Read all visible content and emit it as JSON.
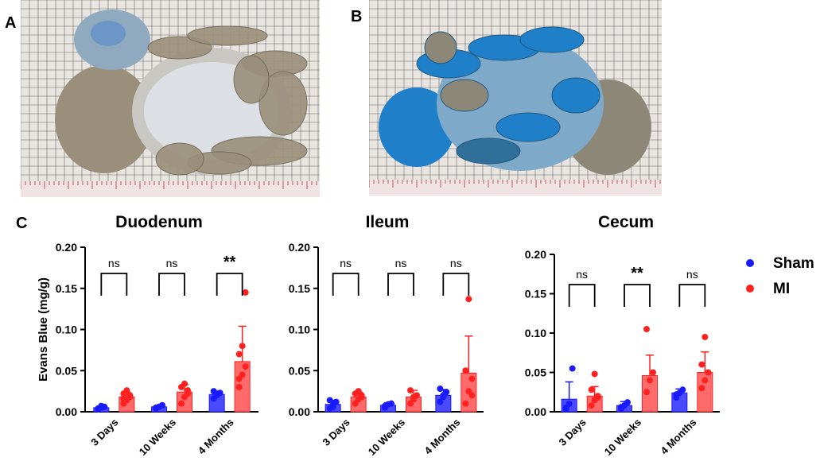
{
  "panels": {
    "a_label": "A",
    "b_label": "B",
    "c_label": "C"
  },
  "photos": {
    "a": {
      "description_icon": "intestine-photo-mildly-stained",
      "tissue_color": "#9a8f7a",
      "stain_color": "#5b8fc9",
      "grid_color": "#3a3a3a",
      "background_color": "#e8e4e0"
    },
    "b": {
      "description_icon": "intestine-photo-blue-stained",
      "tissue_color": "#8d8778",
      "stain_color": "#1f7fc8",
      "grid_color": "#3a3a3a",
      "background_color": "#e8e4e0"
    }
  },
  "legend": {
    "items": [
      {
        "label": "Sham",
        "color": "#1a1aff"
      },
      {
        "label": "MI",
        "color": "#ff2020"
      }
    ]
  },
  "colors": {
    "sham_fill": "#4a4aff",
    "mi_fill": "#ff6b6b",
    "sham_point": "#1a1aff",
    "mi_point": "#ff2020",
    "sham_error": "#1a1aff",
    "mi_error": "#ff2020"
  },
  "chart_data": [
    {
      "type": "bar",
      "title": "Duodenum",
      "ylabel": "Evans Blue (mg/g)",
      "ylim": [
        0,
        0.2
      ],
      "yticks": [
        "0.00",
        "0.05",
        "0.10",
        "0.15",
        "0.20"
      ],
      "categories": [
        "3 Days",
        "10 Weeks",
        "4 Months"
      ],
      "series": [
        {
          "name": "Sham",
          "values": [
            0.005,
            0.006,
            0.021
          ],
          "errors": [
            0.002,
            0.002,
            0.004
          ],
          "points": [
            [
              0.003,
              0.005,
              0.006,
              0.004,
              0.007
            ],
            [
              0.004,
              0.006,
              0.008,
              0.005
            ],
            [
              0.016,
              0.02,
              0.023,
              0.025,
              0.022
            ]
          ]
        },
        {
          "name": "MI",
          "values": [
            0.018,
            0.024,
            0.061
          ],
          "errors": [
            0.006,
            0.009,
            0.043
          ],
          "points": [
            [
              0.01,
              0.014,
              0.018,
              0.022,
              0.026,
              0.02,
              0.016
            ],
            [
              0.01,
              0.018,
              0.026,
              0.03,
              0.034,
              0.022
            ],
            [
              0.03,
              0.045,
              0.055,
              0.07,
              0.08,
              0.145,
              0.04
            ]
          ]
        }
      ],
      "significance": [
        "ns",
        "ns",
        "**"
      ]
    },
    {
      "type": "bar",
      "title": "Ileum",
      "ylabel": "",
      "ylim": [
        0,
        0.2
      ],
      "yticks": [
        "0.00",
        "0.05",
        "0.10",
        "0.15",
        "0.20"
      ],
      "categories": [
        "3 Days",
        "10 Weeks",
        "4 Months"
      ],
      "series": [
        {
          "name": "Sham",
          "values": [
            0.009,
            0.008,
            0.02
          ],
          "errors": [
            0.005,
            0.003,
            0.007
          ],
          "points": [
            [
              0.004,
              0.008,
              0.012,
              0.014,
              0.006
            ],
            [
              0.005,
              0.009,
              0.01,
              0.007
            ],
            [
              0.012,
              0.018,
              0.024,
              0.028,
              0.02
            ]
          ]
        },
        {
          "name": "MI",
          "values": [
            0.018,
            0.018,
            0.047
          ],
          "errors": [
            0.006,
            0.008,
            0.045
          ],
          "points": [
            [
              0.01,
              0.015,
              0.02,
              0.022,
              0.025,
              0.018
            ],
            [
              0.01,
              0.015,
              0.02,
              0.026,
              0.018
            ],
            [
              0.01,
              0.025,
              0.04,
              0.05,
              0.137,
              0.02
            ]
          ]
        }
      ],
      "significance": [
        "ns",
        "ns",
        "ns"
      ]
    },
    {
      "type": "bar",
      "title": "Cecum",
      "ylabel": "",
      "ylim": [
        0,
        0.2
      ],
      "yticks": [
        "0.00",
        "0.05",
        "0.10",
        "0.15",
        "0.20"
      ],
      "categories": [
        "3 Days",
        "10 Weeks",
        "4 Months"
      ],
      "series": [
        {
          "name": "Sham",
          "values": [
            0.016,
            0.008,
            0.024
          ],
          "errors": [
            0.022,
            0.005,
            0.005
          ],
          "points": [
            [
              0.003,
              0.01,
              0.055,
              0.005
            ],
            [
              0.004,
              0.008,
              0.012,
              0.006
            ],
            [
              0.018,
              0.024,
              0.028,
              0.022
            ]
          ]
        },
        {
          "name": "MI",
          "values": [
            0.02,
            0.046,
            0.05
          ],
          "errors": [
            0.012,
            0.026,
            0.026
          ],
          "points": [
            [
              0.008,
              0.015,
              0.02,
              0.028,
              0.048,
              0.018
            ],
            [
              0.025,
              0.04,
              0.05,
              0.105
            ],
            [
              0.03,
              0.04,
              0.05,
              0.06,
              0.095
            ]
          ]
        }
      ],
      "significance": [
        "ns",
        "**",
        "ns"
      ]
    }
  ]
}
